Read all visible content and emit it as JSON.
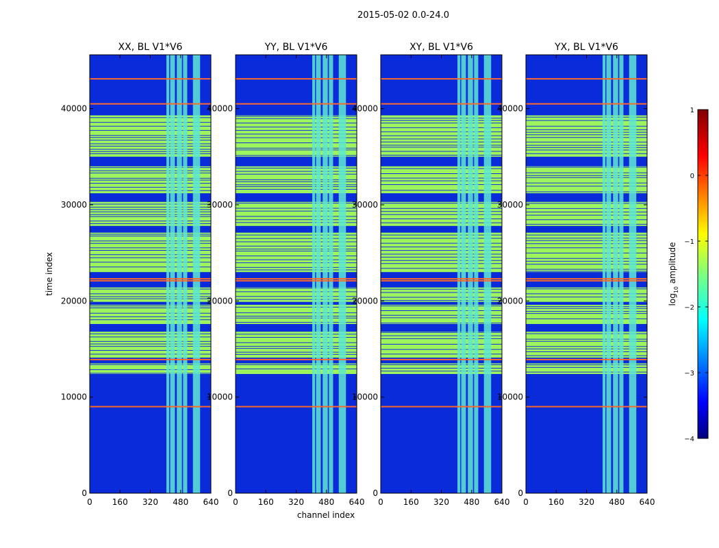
{
  "figure": {
    "title": "2015-05-02 0.0-24.0",
    "colormap": [
      "#00007f",
      "#0000ff",
      "#007fff",
      "#00ffff",
      "#7fff7f",
      "#ffff00",
      "#ff7f00",
      "#ff0000",
      "#7f0000"
    ]
  },
  "chart_data": {
    "type": "heatmap",
    "title": "2015-05-02 0.0-24.0",
    "xlabel": "channel index",
    "ylabel": "time index",
    "xlim": [
      0,
      640
    ],
    "ylim": [
      0,
      45600
    ],
    "x_ticks": [
      0,
      160,
      320,
      480,
      640
    ],
    "y_ticks": [
      0,
      10000,
      20000,
      30000,
      40000
    ],
    "band_channels": [
      [
        405,
        420
      ],
      [
        425,
        450
      ],
      [
        460,
        487
      ],
      [
        493,
        515
      ],
      [
        545,
        583
      ]
    ],
    "high_rows": [
      9000,
      13900,
      22100,
      22300,
      40500,
      43100
    ],
    "plateau_time_ranges": [
      [
        12400,
        13500
      ],
      [
        14100,
        16800
      ],
      [
        17600,
        19600
      ],
      [
        19900,
        21400
      ],
      [
        23000,
        27100
      ],
      [
        27800,
        30300
      ],
      [
        31200,
        34000
      ],
      [
        35000,
        39300
      ]
    ],
    "panels": [
      {
        "title": "XX, BL V1*V6"
      },
      {
        "title": "YY, BL V1*V6"
      },
      {
        "title": "XY, BL V1*V6"
      },
      {
        "title": "YX, BL V1*V6"
      }
    ],
    "colorbar": {
      "label": "log10 amplitude",
      "label_main": "log",
      "label_sub": "10",
      "label_end": " amplitude",
      "range": [
        -4,
        1
      ],
      "ticks": [
        "1",
        "0",
        "−1",
        "−2",
        "−3",
        "−4"
      ]
    }
  }
}
